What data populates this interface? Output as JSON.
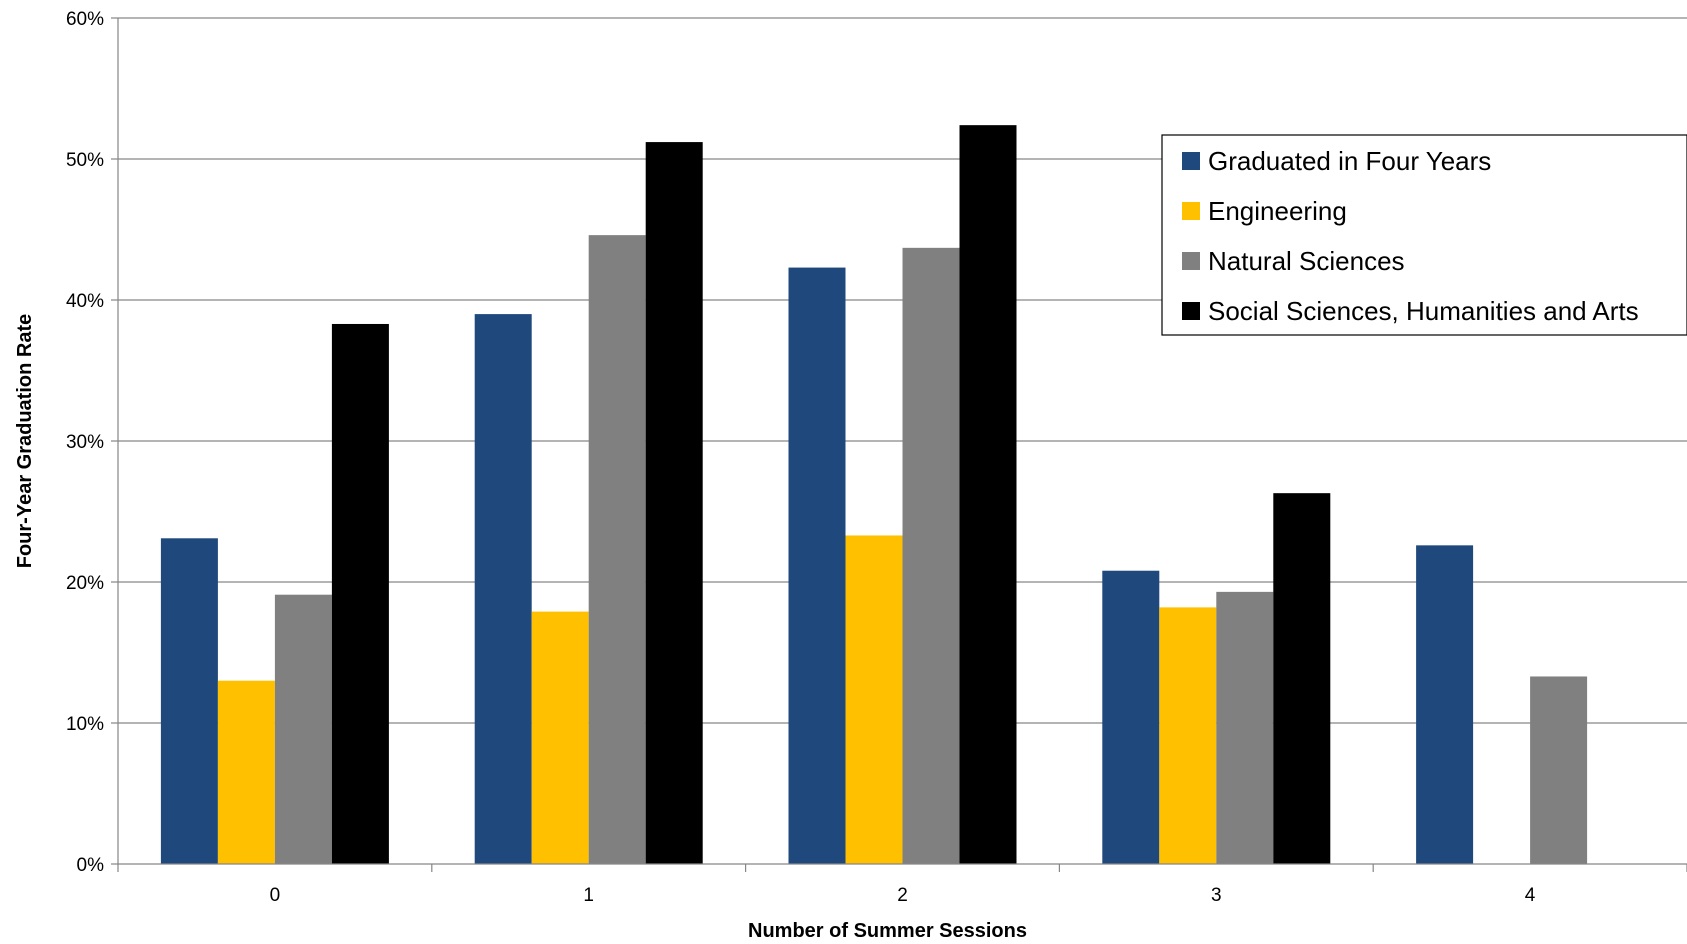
{
  "chart_data": {
    "type": "bar",
    "title": "",
    "xlabel": "Number of Summer Sessions",
    "ylabel": "Four-Year Graduation Rate",
    "categories": [
      "0",
      "1",
      "2",
      "3",
      "4"
    ],
    "ylim": [
      0,
      60
    ],
    "yticks": [
      "0%",
      "10%",
      "20%",
      "30%",
      "40%",
      "50%",
      "60%"
    ],
    "grid": true,
    "legend_position": "top-right",
    "series": [
      {
        "name": "Graduated in Four Years",
        "color": "#1f497d",
        "values": [
          23.1,
          39.0,
          42.3,
          20.8,
          22.6
        ]
      },
      {
        "name": "Engineering",
        "color": "#ffc000",
        "values": [
          13.0,
          17.9,
          23.3,
          18.2,
          null
        ]
      },
      {
        "name": "Natural Sciences",
        "color": "#808080",
        "values": [
          19.1,
          44.6,
          43.7,
          19.3,
          13.3
        ]
      },
      {
        "name": "Social Sciences, Humanities and Arts",
        "color": "#000000",
        "values": [
          38.3,
          51.2,
          52.4,
          26.3,
          null
        ]
      }
    ]
  }
}
